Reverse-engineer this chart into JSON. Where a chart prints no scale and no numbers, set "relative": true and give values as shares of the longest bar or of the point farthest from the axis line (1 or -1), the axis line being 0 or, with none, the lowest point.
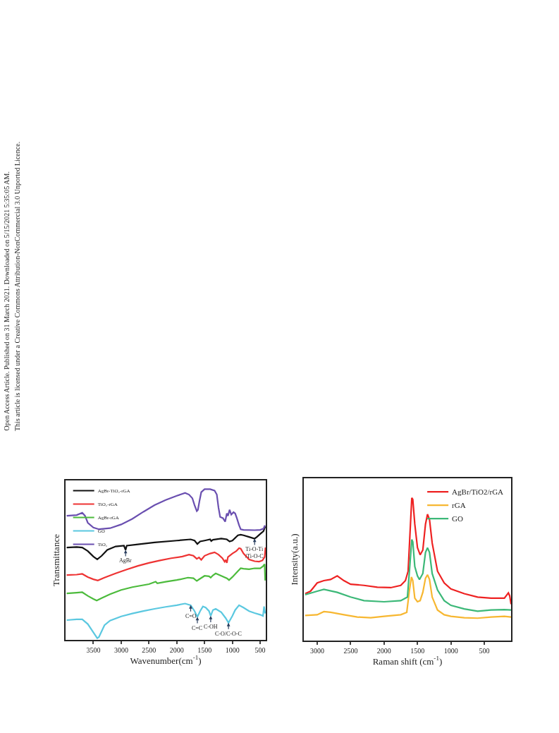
{
  "chart_data": [
    {
      "type": "line",
      "relative": true,
      "xlabel": "Wavenumber(cm$^{-1}$)",
      "ylabel": "Transmittance",
      "xlim": [
        4000,
        400
      ],
      "xticks": [
        3500,
        3000,
        2500,
        2000,
        1500,
        1000,
        500
      ],
      "tick_labels": "x",
      "legend": "top left",
      "marker": "none",
      "line_style": "solid",
      "series": [
        {
          "name": "AgBr-TiO₂-rGA",
          "color": "#111111",
          "x": [
            3980,
            3800,
            3700,
            3600,
            3500,
            3430,
            3350,
            3250,
            3100,
            2950,
            2920,
            2900,
            2700,
            2400,
            2000,
            1750,
            1680,
            1630,
            1580,
            1500,
            1400,
            1380,
            1350,
            1200,
            1100,
            1050,
            1000,
            900,
            850,
            800,
            700,
            600,
            560,
            500,
            440,
            410
          ],
          "values": [
            0.613,
            0.616,
            0.613,
            0.589,
            0.553,
            0.534,
            0.558,
            0.597,
            0.62,
            0.625,
            0.597,
            0.625,
            0.634,
            0.647,
            0.659,
            0.667,
            0.659,
            0.636,
            0.653,
            0.659,
            0.667,
            0.656,
            0.664,
            0.672,
            0.667,
            0.653,
            0.659,
            0.694,
            0.698,
            0.694,
            0.683,
            0.672,
            0.683,
            0.703,
            0.722,
            0.753
          ]
        },
        {
          "name": "TiO₂-rGA",
          "color": "#ee3333",
          "x": [
            3980,
            3800,
            3700,
            3600,
            3500,
            3420,
            3300,
            3100,
            2900,
            2700,
            2500,
            2300,
            2100,
            1900,
            1780,
            1700,
            1640,
            1600,
            1560,
            1500,
            1400,
            1320,
            1250,
            1180,
            1140,
            1120,
            1100,
            1080,
            1000,
            930,
            880,
            850,
            800,
            700,
            600,
            520,
            460,
            420,
            405
          ],
          "values": [
            0.43,
            0.433,
            0.438,
            0.417,
            0.402,
            0.394,
            0.413,
            0.441,
            0.467,
            0.491,
            0.511,
            0.527,
            0.542,
            0.553,
            0.566,
            0.558,
            0.538,
            0.547,
            0.531,
            0.558,
            0.573,
            0.581,
            0.566,
            0.542,
            0.519,
            0.531,
            0.511,
            0.55,
            0.573,
            0.589,
            0.609,
            0.605,
            0.573,
            0.534,
            0.522,
            0.519,
            0.527,
            0.55,
            0.613
          ]
        },
        {
          "name": "AgBr-rGA",
          "color": "#4cbb3c",
          "x": [
            3980,
            3800,
            3700,
            3600,
            3500,
            3440,
            3350,
            3200,
            3000,
            2800,
            2500,
            2380,
            2350,
            2200,
            2000,
            1800,
            1700,
            1640,
            1580,
            1500,
            1420,
            1390,
            1350,
            1300,
            1200,
            1100,
            1060,
            1000,
            900,
            850,
            800,
            700,
            600,
            500,
            450,
            420,
            410
          ],
          "values": [
            0.308,
            0.313,
            0.316,
            0.292,
            0.272,
            0.261,
            0.277,
            0.303,
            0.331,
            0.35,
            0.37,
            0.386,
            0.375,
            0.386,
            0.397,
            0.413,
            0.409,
            0.391,
            0.406,
            0.425,
            0.422,
            0.413,
            0.428,
            0.441,
            0.425,
            0.409,
            0.397,
            0.417,
            0.456,
            0.475,
            0.472,
            0.469,
            0.475,
            0.475,
            0.488,
            0.503,
            0.394
          ]
        },
        {
          "name": "GO",
          "color": "#5bc8e0",
          "x": [
            3980,
            3800,
            3700,
            3600,
            3500,
            3430,
            3400,
            3300,
            3200,
            3000,
            2800,
            2600,
            2400,
            2200,
            2000,
            1850,
            1750,
            1680,
            1630,
            1580,
            1530,
            1480,
            1420,
            1390,
            1350,
            1300,
            1200,
            1120,
            1070,
            1000,
            950,
            880,
            800,
            700,
            600,
            500,
            450,
            430,
            410
          ],
          "values": [
            0.131,
            0.136,
            0.136,
            0.105,
            0.05,
            0.011,
            0.019,
            0.097,
            0.128,
            0.156,
            0.175,
            0.191,
            0.206,
            0.219,
            0.23,
            0.241,
            0.23,
            0.191,
            0.152,
            0.191,
            0.222,
            0.214,
            0.191,
            0.159,
            0.198,
            0.206,
            0.183,
            0.144,
            0.113,
            0.159,
            0.198,
            0.23,
            0.214,
            0.191,
            0.178,
            0.167,
            0.159,
            0.222,
            0.175
          ]
        },
        {
          "name": "TiO₂",
          "color": "#6a4fb0",
          "x": [
            3980,
            3800,
            3700,
            3650,
            3600,
            3500,
            3400,
            3200,
            3000,
            2800,
            2600,
            2400,
            2200,
            2000,
            1850,
            1780,
            1720,
            1680,
            1640,
            1620,
            1590,
            1560,
            1500,
            1400,
            1320,
            1280,
            1250,
            1220,
            1170,
            1130,
            1100,
            1080,
            1050,
            1020,
            980,
            950,
            920,
            880,
            850,
            800,
            600,
            500,
            440,
            420,
            405
          ],
          "values": [
            0.823,
            0.828,
            0.844,
            0.823,
            0.777,
            0.745,
            0.734,
            0.741,
            0.766,
            0.803,
            0.85,
            0.894,
            0.928,
            0.956,
            0.975,
            0.964,
            0.94,
            0.894,
            0.855,
            0.863,
            0.925,
            0.98,
            1,
            1,
            0.99,
            0.964,
            0.878,
            0.816,
            0.808,
            0.784,
            0.839,
            0.823,
            0.863,
            0.831,
            0.847,
            0.839,
            0.808,
            0.761,
            0.734,
            0.73,
            0.728,
            0.73,
            0.738,
            0.756,
            0.756
          ]
        }
      ],
      "annotations": [
        {
          "text": "AgBr",
          "x": 2920,
          "y": 0.597
        },
        {
          "text": "Ti-O-Ti\n/Ti-O-C",
          "x": 600,
          "y": 0.672
        },
        {
          "text": "C=O",
          "x": 1750,
          "y": 0.23
        },
        {
          "text": "C=C",
          "x": 1630,
          "y": 0.152
        },
        {
          "text": "C-OH",
          "x": 1390,
          "y": 0.159
        },
        {
          "text": "C-O/C-O-C",
          "x": 1070,
          "y": 0.113
        },
        "Open Access Article. Published on 31 March 2021. Downloaded on 5/15/2021 5:35:05 AM.",
        "This article is licensed under a Creative Commons Attribution-NonCommercial 3.0 Unported Licence."
      ]
    },
    {
      "type": "line",
      "relative": true,
      "xlabel": "Raman shift (cm$^{-1}$)",
      "ylabel": "Intensity(a.u.)",
      "xlim": [
        3200,
        100
      ],
      "xticks": [
        3000,
        2500,
        2000,
        1500,
        1000,
        500
      ],
      "tick_labels": "x",
      "legend": "top right",
      "marker": "none",
      "line_style": "solid",
      "series": [
        {
          "name": "AgBr/TiO2/rGA",
          "color": "#ee2222",
          "x": [
            3180,
            3100,
            3000,
            2900,
            2800,
            2700,
            2600,
            2500,
            2300,
            2100,
            1900,
            1750,
            1680,
            1640,
            1610,
            1585,
            1570,
            1540,
            1500,
            1460,
            1420,
            1380,
            1350,
            1320,
            1280,
            1200,
            1100,
            1000,
            800,
            600,
            400,
            200,
            140,
            120,
            100
          ],
          "values": [
            0.329,
            0.346,
            0.404,
            0.42,
            0.428,
            0.453,
            0.42,
            0.395,
            0.387,
            0.374,
            0.371,
            0.387,
            0.42,
            0.486,
            0.766,
            1,
            0.989,
            0.816,
            0.651,
            0.601,
            0.634,
            0.816,
            0.885,
            0.848,
            0.684,
            0.486,
            0.404,
            0.362,
            0.329,
            0.305,
            0.297,
            0.297,
            0.334,
            0.313,
            0.255
          ]
        },
        {
          "name": "rGA",
          "color": "#f7b731",
          "x": [
            3180,
            3000,
            2900,
            2800,
            2600,
            2400,
            2200,
            2000,
            1750,
            1660,
            1620,
            1590,
            1570,
            1540,
            1500,
            1460,
            1420,
            1380,
            1350,
            1320,
            1280,
            1200,
            1100,
            1000,
            800,
            600,
            400,
            200,
            100
          ],
          "values": [
            0.176,
            0.181,
            0.203,
            0.198,
            0.181,
            0.165,
            0.16,
            0.17,
            0.181,
            0.198,
            0.354,
            0.445,
            0.42,
            0.297,
            0.272,
            0.28,
            0.338,
            0.437,
            0.461,
            0.428,
            0.305,
            0.214,
            0.181,
            0.17,
            0.16,
            0.157,
            0.165,
            0.17,
            0.165
          ]
        },
        {
          "name": "GO",
          "color": "#3cb878",
          "x": [
            3180,
            3000,
            2900,
            2700,
            2500,
            2300,
            2000,
            1750,
            1650,
            1610,
            1585,
            1570,
            1540,
            1500,
            1470,
            1420,
            1380,
            1350,
            1320,
            1280,
            1200,
            1100,
            1000,
            800,
            600,
            400,
            200,
            100
          ],
          "values": [
            0.321,
            0.346,
            0.359,
            0.338,
            0.305,
            0.28,
            0.272,
            0.28,
            0.305,
            0.552,
            0.708,
            0.692,
            0.519,
            0.453,
            0.428,
            0.47,
            0.618,
            0.651,
            0.618,
            0.47,
            0.354,
            0.28,
            0.247,
            0.222,
            0.206,
            0.214,
            0.217,
            0.214
          ]
        }
      ]
    }
  ]
}
